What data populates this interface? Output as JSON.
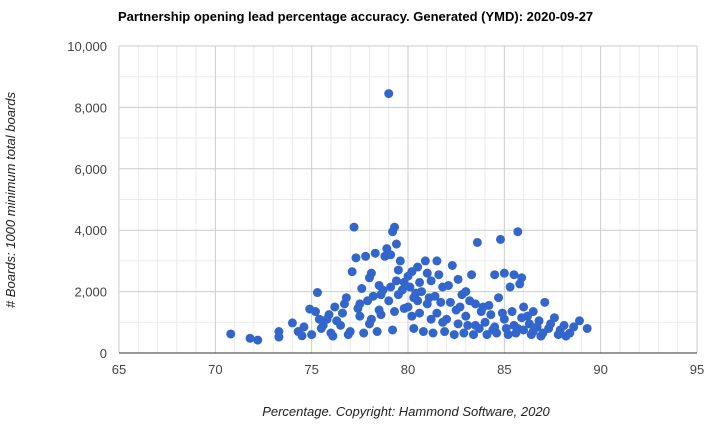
{
  "chart_data": {
    "type": "scatter",
    "title": "Partnership opening lead percentage accuracy. Generated (YMD): 2020-09-27",
    "xlabel": "Percentage. Copyright: Hammond Software, 2020",
    "ylabel": "# Boards: 1000 minimum total boards",
    "xlim": [
      65,
      95
    ],
    "ylim": [
      0,
      10000
    ],
    "x_ticks": [
      65,
      70,
      75,
      80,
      85,
      90,
      95
    ],
    "x_tick_labels": [
      "65",
      "70",
      "75",
      "80",
      "85",
      "90",
      "95"
    ],
    "y_ticks": [
      0,
      2000,
      4000,
      6000,
      8000,
      10000
    ],
    "y_tick_labels": [
      "0",
      "2,000",
      "4,000",
      "6,000",
      "8,000",
      "10,000"
    ],
    "grid": true,
    "legend": "none",
    "point_color": "#3366cc",
    "series": [
      {
        "points": [
          [
            70.8,
            620
          ],
          [
            71.8,
            480
          ],
          [
            72.2,
            420
          ],
          [
            73.3,
            520
          ],
          [
            73.3,
            700
          ],
          [
            74.0,
            980
          ],
          [
            74.3,
            700
          ],
          [
            74.5,
            560
          ],
          [
            74.9,
            1430
          ],
          [
            75.2,
            1350
          ],
          [
            75.3,
            1970
          ],
          [
            75.6,
            900
          ],
          [
            75.8,
            1100
          ],
          [
            76.2,
            1500
          ],
          [
            76.6,
            1300
          ],
          [
            76.8,
            1800
          ],
          [
            77.1,
            2650
          ],
          [
            77.2,
            4100
          ],
          [
            77.3,
            3100
          ],
          [
            77.5,
            1600
          ],
          [
            77.6,
            2100
          ],
          [
            77.8,
            3150
          ],
          [
            78.0,
            2450
          ],
          [
            78.1,
            2600
          ],
          [
            78.3,
            3250
          ],
          [
            78.5,
            2200
          ],
          [
            78.6,
            1900
          ],
          [
            78.8,
            3150
          ],
          [
            78.9,
            3400
          ],
          [
            79.0,
            8450
          ],
          [
            79.1,
            3200
          ],
          [
            79.2,
            3950
          ],
          [
            79.3,
            4100
          ],
          [
            79.4,
            3550
          ],
          [
            79.5,
            2700
          ],
          [
            79.6,
            3000
          ],
          [
            79.8,
            2300
          ],
          [
            80.0,
            2500
          ],
          [
            80.2,
            2650
          ],
          [
            80.3,
            1800
          ],
          [
            80.5,
            2800
          ],
          [
            80.6,
            2300
          ],
          [
            80.9,
            3000
          ],
          [
            81.0,
            2600
          ],
          [
            81.2,
            2350
          ],
          [
            81.5,
            3000
          ],
          [
            81.6,
            2550
          ],
          [
            81.8,
            2150
          ],
          [
            82.1,
            2200
          ],
          [
            82.3,
            2850
          ],
          [
            82.6,
            2400
          ],
          [
            82.8,
            1900
          ],
          [
            83.0,
            2000
          ],
          [
            83.3,
            2550
          ],
          [
            83.5,
            1600
          ],
          [
            83.6,
            3600
          ],
          [
            83.9,
            1500
          ],
          [
            84.2,
            1550
          ],
          [
            84.5,
            2550
          ],
          [
            84.7,
            1800
          ],
          [
            84.8,
            3700
          ],
          [
            85.0,
            2600
          ],
          [
            85.3,
            2150
          ],
          [
            85.5,
            2550
          ],
          [
            85.7,
            3950
          ],
          [
            85.8,
            2250
          ],
          [
            85.9,
            2450
          ],
          [
            86.0,
            1500
          ],
          [
            86.2,
            1200
          ],
          [
            86.5,
            1350
          ],
          [
            86.8,
            1050
          ],
          [
            87.1,
            1650
          ],
          [
            87.3,
            800
          ],
          [
            87.6,
            1150
          ],
          [
            87.9,
            750
          ],
          [
            88.1,
            900
          ],
          [
            88.4,
            650
          ],
          [
            88.6,
            850
          ],
          [
            88.9,
            1050
          ],
          [
            89.3,
            800
          ],
          [
            75.5,
            800
          ],
          [
            76.0,
            650
          ],
          [
            76.5,
            900
          ],
          [
            77.0,
            700
          ],
          [
            77.5,
            1200
          ],
          [
            78.0,
            950
          ],
          [
            78.5,
            1400
          ],
          [
            79.0,
            1700
          ],
          [
            79.5,
            1900
          ],
          [
            80.0,
            1500
          ],
          [
            80.5,
            1700
          ],
          [
            81.0,
            1600
          ],
          [
            81.5,
            1300
          ],
          [
            82.0,
            1100
          ],
          [
            82.5,
            1400
          ],
          [
            83.0,
            1200
          ],
          [
            83.5,
            900
          ],
          [
            84.0,
            1000
          ],
          [
            84.5,
            850
          ],
          [
            85.0,
            1100
          ],
          [
            85.5,
            900
          ],
          [
            86.0,
            750
          ],
          [
            86.5,
            700
          ],
          [
            87.0,
            650
          ],
          [
            74.6,
            850
          ],
          [
            75.0,
            600
          ],
          [
            75.4,
            1100
          ],
          [
            75.9,
            1250
          ],
          [
            76.3,
            1050
          ],
          [
            76.7,
            1600
          ],
          [
            77.4,
            1450
          ],
          [
            77.9,
            1700
          ],
          [
            78.2,
            1850
          ],
          [
            78.7,
            2050
          ],
          [
            79.1,
            2150
          ],
          [
            79.4,
            2350
          ],
          [
            79.7,
            2050
          ],
          [
            80.1,
            2150
          ],
          [
            80.4,
            1950
          ],
          [
            80.7,
            2000
          ],
          [
            81.1,
            1800
          ],
          [
            81.4,
            1850
          ],
          [
            81.7,
            1650
          ],
          [
            82.2,
            1650
          ],
          [
            82.7,
            1500
          ],
          [
            83.2,
            1700
          ],
          [
            83.8,
            1350
          ],
          [
            84.3,
            1250
          ],
          [
            84.9,
            1300
          ],
          [
            85.4,
            1350
          ],
          [
            85.9,
            1150
          ],
          [
            86.3,
            950
          ],
          [
            86.7,
            850
          ],
          [
            87.4,
            950
          ],
          [
            87.8,
            600
          ],
          [
            88.2,
            550
          ],
          [
            76.1,
            550
          ],
          [
            76.9,
            600
          ],
          [
            77.7,
            650
          ],
          [
            78.4,
            700
          ],
          [
            79.2,
            750
          ],
          [
            80.3,
            800
          ],
          [
            80.8,
            700
          ],
          [
            81.3,
            650
          ],
          [
            81.9,
            700
          ],
          [
            82.4,
            600
          ],
          [
            82.9,
            650
          ],
          [
            83.4,
            600
          ],
          [
            84.1,
            600
          ],
          [
            84.6,
            650
          ],
          [
            85.2,
            600
          ],
          [
            85.6,
            650
          ],
          [
            78.1,
            1100
          ],
          [
            78.6,
            1250
          ],
          [
            79.3,
            1350
          ],
          [
            79.8,
            1450
          ],
          [
            80.2,
            1200
          ],
          [
            80.6,
            1300
          ],
          [
            81.2,
            1100
          ],
          [
            81.8,
            1000
          ],
          [
            82.6,
            950
          ],
          [
            83.1,
            900
          ],
          [
            83.7,
            800
          ],
          [
            84.4,
            750
          ],
          [
            85.1,
            800
          ],
          [
            85.7,
            800
          ],
          [
            86.4,
            600
          ],
          [
            86.9,
            550
          ]
        ]
      }
    ]
  }
}
